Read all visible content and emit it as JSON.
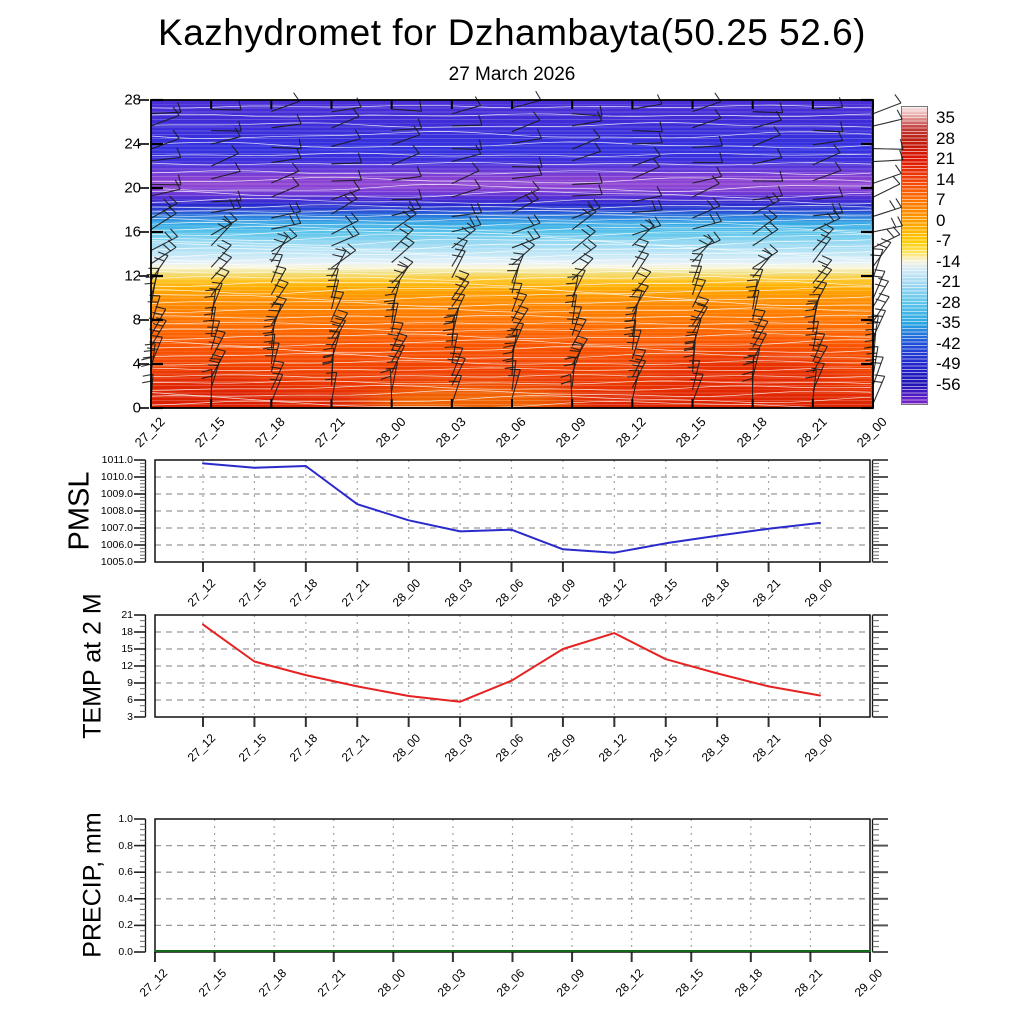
{
  "page": {
    "title": "Kazhydromet for Dzhambayta(50.25 52.6)",
    "subtitle": "27 March 2026",
    "background": "#ffffff"
  },
  "timeline": [
    "27_12",
    "27_15",
    "27_18",
    "27_21",
    "28_00",
    "28_03",
    "28_06",
    "28_09",
    "28_12",
    "28_15",
    "28_18",
    "28_21",
    "29_00"
  ],
  "colorbar": {
    "values": [
      35,
      28,
      21,
      14,
      7,
      0,
      -7,
      -14,
      -21,
      -28,
      -35,
      -42,
      -49,
      -56
    ],
    "gradient_top_to_bottom": [
      {
        "at": 0,
        "color": "#f6e3e3"
      },
      {
        "at": 2,
        "color": "#eebcbc"
      },
      {
        "at": 4.5,
        "color": "#d97f7f"
      },
      {
        "at": 7,
        "color": "#c33b3b"
      },
      {
        "at": 10.6,
        "color": "#bb1f10"
      },
      {
        "at": 17.5,
        "color": "#dd1400"
      },
      {
        "at": 24.4,
        "color": "#f04008"
      },
      {
        "at": 31.3,
        "color": "#ff7300"
      },
      {
        "at": 38.2,
        "color": "#ff9d00"
      },
      {
        "at": 45.1,
        "color": "#ffcb00"
      },
      {
        "at": 49,
        "color": "#ffe45e"
      },
      {
        "at": 52,
        "color": "#f5f3e0"
      },
      {
        "at": 55,
        "color": "#cfe9f7"
      },
      {
        "at": 58.9,
        "color": "#a6daf3"
      },
      {
        "at": 65.8,
        "color": "#5fc6ec"
      },
      {
        "at": 72.7,
        "color": "#29a7e2"
      },
      {
        "at": 79.6,
        "color": "#2050d8"
      },
      {
        "at": 86.5,
        "color": "#2226cc"
      },
      {
        "at": 93.4,
        "color": "#2012b4"
      },
      {
        "at": 96.5,
        "color": "#4818c0"
      },
      {
        "at": 100,
        "color": "#7c22cc"
      }
    ]
  },
  "chart_data": [
    {
      "id": "upper-air",
      "type": "heatmap",
      "title": "Time-height temperature fill with wind barbs and white contour lines",
      "x": [
        "27_12",
        "27_15",
        "27_18",
        "27_21",
        "28_00",
        "28_03",
        "28_06",
        "28_09",
        "28_12",
        "28_15",
        "28_18",
        "28_21",
        "29_00"
      ],
      "ylim": [
        0,
        28
      ],
      "yticks": [
        0,
        4,
        8,
        12,
        16,
        20,
        24,
        28
      ],
      "fill_gradient_bottom_to_top": [
        {
          "at": 0,
          "color": "#dc2500"
        },
        {
          "at": 4,
          "color": "#e22b00"
        },
        {
          "at": 7.1,
          "color": "#ea3600"
        },
        {
          "at": 14.3,
          "color": "#f34600"
        },
        {
          "at": 21.4,
          "color": "#fb5900"
        },
        {
          "at": 28.6,
          "color": "#ff7500"
        },
        {
          "at": 35.7,
          "color": "#ff9300"
        },
        {
          "at": 39.3,
          "color": "#ffae00"
        },
        {
          "at": 41.8,
          "color": "#ffc92e"
        },
        {
          "at": 43.9,
          "color": "#f0e083"
        },
        {
          "at": 45.7,
          "color": "#faf6da"
        },
        {
          "at": 47.2,
          "color": "#e4f1f8"
        },
        {
          "at": 50,
          "color": "#c2e7f6"
        },
        {
          "at": 53.6,
          "color": "#97d9f2"
        },
        {
          "at": 57.1,
          "color": "#5ac4ea"
        },
        {
          "at": 60,
          "color": "#34a7e4"
        },
        {
          "at": 62.5,
          "color": "#2b76da"
        },
        {
          "at": 64.3,
          "color": "#2a44d2"
        },
        {
          "at": 66.1,
          "color": "#2727ce"
        },
        {
          "at": 67.9,
          "color": "#4c2ed4"
        },
        {
          "at": 70.4,
          "color": "#7c3cd4"
        },
        {
          "at": 72.5,
          "color": "#8f46d2"
        },
        {
          "at": 75,
          "color": "#8440d2"
        },
        {
          "at": 77.5,
          "color": "#6036d8"
        },
        {
          "at": 80.4,
          "color": "#3d30dc"
        },
        {
          "at": 83.9,
          "color": "#3331e0"
        },
        {
          "at": 89.3,
          "color": "#3a2eda"
        },
        {
          "at": 94.6,
          "color": "#422cd6"
        },
        {
          "at": 100,
          "color": "#4c2fd8"
        }
      ],
      "contour_levels_v": [
        0.3,
        0.8,
        1.3,
        1.8,
        2.3,
        2.9,
        3.5,
        4.1,
        4.7,
        5.3,
        5.9,
        6.5,
        7.1,
        7.7,
        8.3,
        8.9,
        9.5,
        10.1,
        10.7,
        11.3,
        11.8,
        12.3,
        12.7,
        13.1,
        13.5,
        13.9,
        14.3,
        14.7,
        15.1,
        15.5,
        15.9,
        16.3,
        16.7,
        17.1,
        17.5,
        17.9,
        18.3,
        18.8,
        19.4,
        20.0,
        20.7,
        21.4,
        22.2,
        23.0,
        23.9,
        24.8,
        25.7,
        26.6,
        27.4
      ],
      "contour_color": "#ffffff",
      "wind_barb_color": "#1a1a1a",
      "wind_barb_levels": [
        {
          "v": 0.6,
          "angle": 80,
          "ticks": 2
        },
        {
          "v": 1.8,
          "angle": 76,
          "ticks": 2
        },
        {
          "v": 3.0,
          "angle": 74,
          "ticks": 3
        },
        {
          "v": 4.2,
          "angle": 72,
          "ticks": 3
        },
        {
          "v": 5.4,
          "angle": 72,
          "ticks": 3
        },
        {
          "v": 6.6,
          "angle": 70,
          "ticks": 3
        },
        {
          "v": 7.8,
          "angle": 70,
          "ticks": 2
        },
        {
          "v": 9.0,
          "angle": 68,
          "ticks": 2
        },
        {
          "v": 10.2,
          "angle": 64,
          "ticks": 2
        },
        {
          "v": 11.6,
          "angle": 58,
          "ticks": 2
        },
        {
          "v": 13.0,
          "angle": 46,
          "ticks": 2
        },
        {
          "v": 14.5,
          "angle": 34,
          "ticks": 2
        },
        {
          "v": 16.0,
          "angle": 24,
          "ticks": 2
        },
        {
          "v": 17.5,
          "angle": 18,
          "ticks": 2
        },
        {
          "v": 19.0,
          "angle": 14,
          "ticks": 1
        },
        {
          "v": 20.6,
          "angle": 12,
          "ticks": 1
        },
        {
          "v": 22.2,
          "angle": 12,
          "ticks": 1
        },
        {
          "v": 23.8,
          "angle": 10,
          "ticks": 1
        },
        {
          "v": 25.4,
          "angle": 10,
          "ticks": 1
        },
        {
          "v": 27.0,
          "angle": 8,
          "ticks": 1
        }
      ],
      "surface_patches": [
        {
          "fx": 0.07,
          "fy": 0.96,
          "frx": 0.13,
          "fry": 0.09,
          "color": "rgba(215,25,0,0.55)"
        },
        {
          "fx": 0.82,
          "fy": 0.9,
          "frx": 0.16,
          "fry": 0.1,
          "color": "rgba(222,30,0,0.50)"
        },
        {
          "fx": 0.44,
          "fy": 0.98,
          "frx": 0.18,
          "fry": 0.07,
          "color": "rgba(255,150,0,0.55)"
        }
      ]
    },
    {
      "id": "pmsl",
      "type": "line",
      "title": "PMSL",
      "line_color": "#2a2acc",
      "categories": [
        "27_12",
        "27_15",
        "27_18",
        "27_21",
        "28_00",
        "28_03",
        "28_06",
        "28_09",
        "28_12",
        "28_15",
        "28_18",
        "28_21",
        "29_00"
      ],
      "values": [
        1010.8,
        1010.55,
        1010.65,
        1008.4,
        1007.45,
        1006.8,
        1006.9,
        1005.75,
        1005.55,
        1006.1,
        1006.55,
        1006.95,
        1007.3
      ],
      "ylim": [
        1005.0,
        1011.0
      ],
      "ytick_labels": [
        "1011.0",
        "1010.0",
        "1009.0",
        "1008.0",
        "1007.0",
        "1006.0",
        "1005.0"
      ],
      "ytick_values": [
        1011,
        1010,
        1009,
        1008,
        1007,
        1006,
        1005
      ],
      "grid_values": [
        1010,
        1009,
        1008,
        1007,
        1006
      ],
      "minor_step": 0.2
    },
    {
      "id": "temp2m",
      "type": "line",
      "title": "TEMP at 2 M",
      "line_color": "#e62222",
      "categories": [
        "27_12",
        "27_15",
        "27_18",
        "27_21",
        "28_00",
        "28_03",
        "28_06",
        "28_09",
        "28_12",
        "28_15",
        "28_18",
        "28_21",
        "29_00"
      ],
      "values": [
        19.3,
        12.8,
        10.4,
        8.4,
        6.7,
        5.7,
        9.4,
        15.0,
        17.8,
        13.2,
        10.7,
        8.4,
        6.8
      ],
      "ylim": [
        3,
        21
      ],
      "ytick_labels": [
        "21",
        "18",
        "15",
        "12",
        "9",
        "6",
        "3"
      ],
      "ytick_values": [
        21,
        18,
        15,
        12,
        9,
        6,
        3
      ],
      "grid_values": [
        18,
        15,
        12,
        9,
        6
      ],
      "minor_step": 1
    },
    {
      "id": "precip",
      "type": "line",
      "title": "PRECIP, mm",
      "line_color": "#15691a",
      "categories": [
        "27_12",
        "27_15",
        "27_18",
        "27_21",
        "28_00",
        "28_03",
        "28_06",
        "28_09",
        "28_12",
        "28_15",
        "28_18",
        "28_21",
        "29_00"
      ],
      "values": [
        0,
        0,
        0,
        0,
        0,
        0,
        0,
        0,
        0,
        0,
        0,
        0,
        0
      ],
      "ylim": [
        0.0,
        1.0
      ],
      "ytick_labels": [
        "1.0",
        "0.8",
        "0.6",
        "0.4",
        "0.2",
        "0.0"
      ],
      "ytick_values": [
        1.0,
        0.8,
        0.6,
        0.4,
        0.2,
        0.0
      ],
      "grid_values": [
        0.8,
        0.6,
        0.4,
        0.2
      ],
      "minor_step": 0.04
    }
  ],
  "style": {
    "grid_color": "#999999",
    "tick_color": "#333333",
    "frame_color": "#111111"
  }
}
